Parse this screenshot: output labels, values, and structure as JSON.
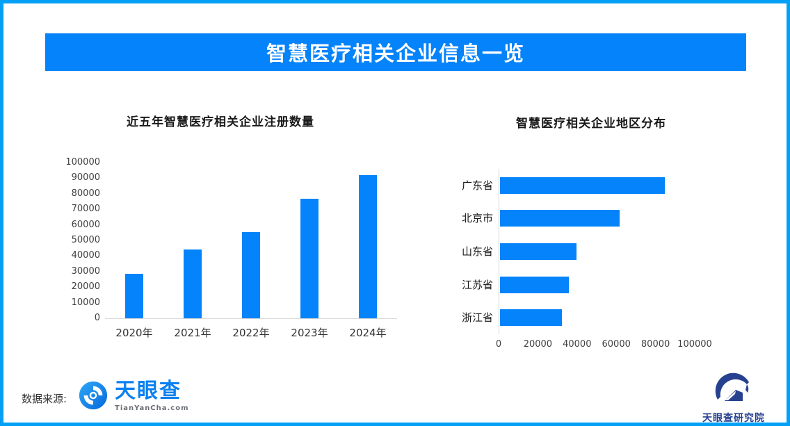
{
  "frame": {
    "border_color": "#04A0F6"
  },
  "header": {
    "title": "智慧医疗相关企业信息一览",
    "bg_color": "#0583FA",
    "text_color": "#FFFFFF"
  },
  "chart_data": [
    {
      "type": "bar",
      "orientation": "vertical",
      "title": "近五年智慧医疗相关企业注册数量",
      "categories": [
        "2020年",
        "2021年",
        "2022年",
        "2023年",
        "2024年"
      ],
      "values": [
        28500,
        44000,
        55500,
        77000,
        92000
      ],
      "ylabel": "",
      "xlabel": "",
      "ylim": [
        0,
        100000
      ],
      "ytick_step": 10000,
      "bar_color": "#0583FA",
      "axis_line_color": "#D9D9D9",
      "grid": false,
      "legend": "none"
    },
    {
      "type": "bar",
      "orientation": "horizontal",
      "title": "智慧医疗相关企业地区分布",
      "categories": [
        "广东省",
        "北京市",
        "山东省",
        "江苏省",
        "浙江省"
      ],
      "values": [
        84000,
        61000,
        39000,
        35000,
        31500
      ],
      "xlim": [
        0,
        100000
      ],
      "xtick_step": 20000,
      "bar_color": "#0583FA",
      "axis_line_color": "#D9D9D9",
      "grid": false,
      "legend": "none"
    }
  ],
  "footer": {
    "source_label": "数据来源:",
    "tianyancha": {
      "name": "天眼查",
      "subtitle": "TianYanCha.com",
      "brand_color": "#0B80F0"
    },
    "research_institute": {
      "name": "天眼查研究院",
      "brand_color": "#26418F"
    }
  }
}
